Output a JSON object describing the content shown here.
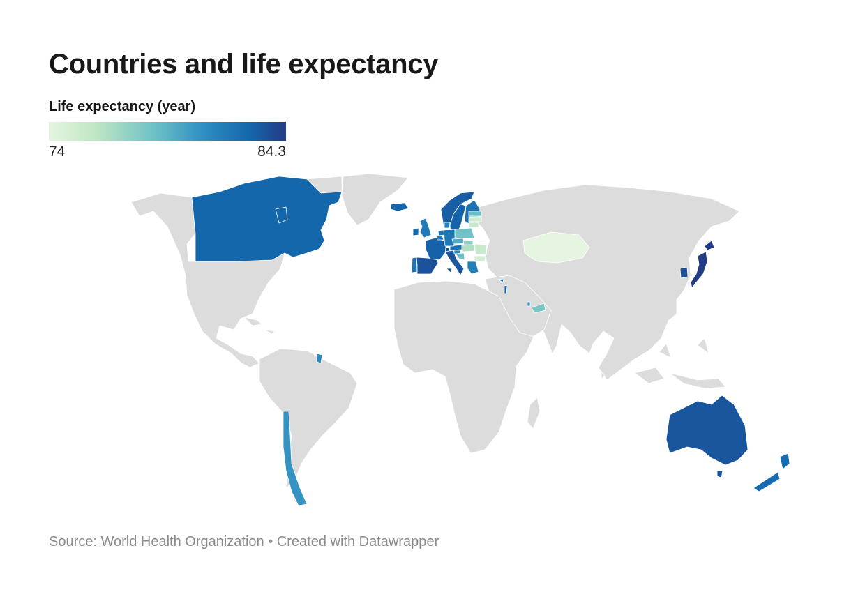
{
  "chart": {
    "title": "Countries and life expectancy",
    "legend_title": "Life expectancy (year)",
    "legend_min": "74",
    "legend_max": "84.3",
    "color_scale": [
      "#e6f5e1",
      "#bfe6c4",
      "#6cc0c6",
      "#2f8fc2",
      "#1466ac",
      "#243b86"
    ],
    "no_data_color": "#dcdcdc"
  },
  "footer": {
    "source": "Source: World Health Organization • Created with Datawrapper"
  },
  "chart_data": {
    "type": "choropleth",
    "title": "Countries and life expectancy",
    "value_label": "Life expectancy (year)",
    "scale_range": [
      74,
      84.3
    ],
    "countries": [
      {
        "name": "Japan",
        "value": 84.3
      },
      {
        "name": "South Korea",
        "value": 83.3
      },
      {
        "name": "Spain",
        "value": 83.2
      },
      {
        "name": "Switzerland",
        "value": 83.3
      },
      {
        "name": "Italy",
        "value": 83.0
      },
      {
        "name": "Australia",
        "value": 83.0
      },
      {
        "name": "France",
        "value": 82.5
      },
      {
        "name": "Norway",
        "value": 82.6
      },
      {
        "name": "Sweden",
        "value": 82.4
      },
      {
        "name": "Iceland",
        "value": 82.3
      },
      {
        "name": "Canada",
        "value": 82.2
      },
      {
        "name": "New Zealand",
        "value": 82.0
      },
      {
        "name": "Ireland",
        "value": 82.0
      },
      {
        "name": "Netherlands",
        "value": 81.8
      },
      {
        "name": "Austria",
        "value": 81.6
      },
      {
        "name": "Finland",
        "value": 81.6
      },
      {
        "name": "Belgium",
        "value": 81.4
      },
      {
        "name": "Germany",
        "value": 81.4
      },
      {
        "name": "United Kingdom",
        "value": 81.2
      },
      {
        "name": "Denmark",
        "value": 80.8
      },
      {
        "name": "Slovenia",
        "value": 80.5
      },
      {
        "name": "Portugal",
        "value": 81.5
      },
      {
        "name": "Greece",
        "value": 81.0
      },
      {
        "name": "Cyprus",
        "value": 80.8
      },
      {
        "name": "Israel",
        "value": 82.6
      },
      {
        "name": "French Guiana",
        "value": 80.5
      },
      {
        "name": "Chile",
        "value": 80.0
      },
      {
        "name": "Czechia",
        "value": 79.1
      },
      {
        "name": "Poland",
        "value": 78.0
      },
      {
        "name": "Slovakia",
        "value": 77.4
      },
      {
        "name": "Hungary",
        "value": 76.4
      },
      {
        "name": "Croatia",
        "value": 78.2
      },
      {
        "name": "Estonia",
        "value": 78.2
      },
      {
        "name": "Romania",
        "value": 75.6
      },
      {
        "name": "Lithuania",
        "value": 75.7
      },
      {
        "name": "Latvia",
        "value": 75.2
      },
      {
        "name": "Bulgaria",
        "value": 74.9
      },
      {
        "name": "Qatar",
        "value": 80.2
      },
      {
        "name": "United Arab Emirates",
        "value": 77.8
      },
      {
        "name": "Kazakhstan",
        "value": 74.0
      }
    ]
  }
}
